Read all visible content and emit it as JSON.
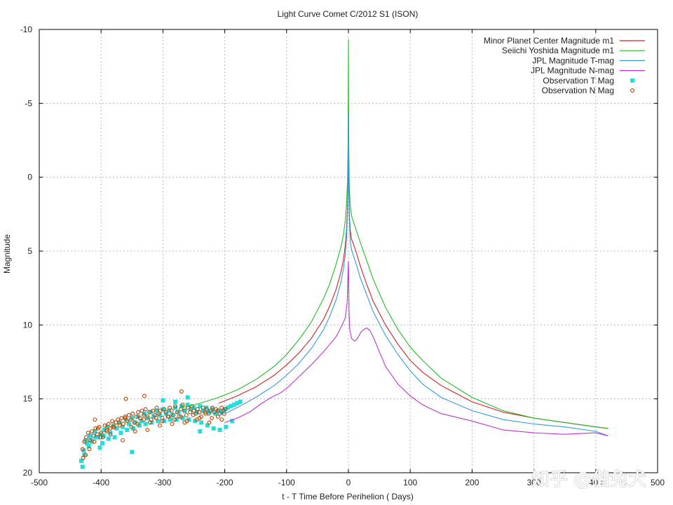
{
  "chart_data": {
    "type": "line",
    "title": "Light Curve Comet C/2012 S1 (ISON)",
    "xlabel": "t - T Time Before Perihelion ( Days)",
    "ylabel": "Magnitude",
    "xlim": [
      -500,
      500
    ],
    "ylim": [
      20,
      -10
    ],
    "y_inverted": true,
    "xticks": [
      -500,
      -400,
      -300,
      -200,
      -100,
      0,
      100,
      200,
      300,
      400,
      500
    ],
    "yticks": [
      -10,
      -5,
      0,
      5,
      10,
      15,
      20
    ],
    "grid": true,
    "legend_position": "top-right",
    "series": [
      {
        "name": "Minor Planet Center Magnitude m1",
        "kind": "line",
        "color": "#cc2222",
        "x": [
          -210,
          -180,
          -150,
          -120,
          -100,
          -80,
          -60,
          -40,
          -30,
          -20,
          -12,
          -8,
          -5,
          -3,
          -1.5,
          -0.5,
          0,
          0.5,
          1.5,
          3,
          5,
          8,
          12,
          20,
          30,
          40,
          60,
          80,
          100,
          120,
          150,
          200,
          250,
          300,
          350,
          400,
          420
        ],
        "y": [
          15.3,
          14.8,
          14.2,
          13.4,
          12.7,
          11.9,
          10.9,
          9.6,
          8.7,
          7.6,
          6.4,
          5.6,
          4.6,
          3.5,
          2.0,
          -0.5,
          -5.0,
          -0.5,
          2.5,
          3.6,
          4.2,
          4.5,
          5.0,
          6.1,
          7.3,
          8.4,
          10.0,
          11.3,
          12.4,
          13.2,
          14.1,
          15.2,
          15.9,
          16.3,
          16.6,
          16.9,
          17.0
        ]
      },
      {
        "name": "Seiichi Yoshida Magnitude m1",
        "kind": "line",
        "color": "#22bb22",
        "x": [
          -270,
          -240,
          -210,
          -180,
          -150,
          -120,
          -100,
          -80,
          -60,
          -40,
          -30,
          -20,
          -12,
          -8,
          -5,
          -3,
          -1.5,
          -0.5,
          0,
          0.5,
          1.5,
          3,
          5,
          8,
          12,
          20,
          30,
          40,
          60,
          80,
          100,
          120,
          150,
          200,
          250,
          300,
          350,
          400,
          420
        ],
        "y": [
          15.6,
          15.3,
          14.9,
          14.4,
          13.7,
          12.8,
          12.0,
          11.0,
          9.8,
          8.2,
          7.2,
          5.9,
          4.7,
          3.9,
          2.9,
          1.8,
          0.3,
          -2.5,
          -9.3,
          -2.5,
          0.7,
          1.9,
          2.6,
          3.0,
          3.5,
          4.5,
          5.7,
          6.9,
          8.8,
          10.3,
          11.5,
          12.4,
          13.6,
          14.9,
          15.8,
          16.3,
          16.6,
          16.9,
          17.0
        ]
      },
      {
        "name": "JPL Magnitude T-mag",
        "kind": "line",
        "color": "#3399dd",
        "x": [
          -200,
          -180,
          -150,
          -120,
          -100,
          -80,
          -60,
          -40,
          -30,
          -20,
          -12,
          -8,
          -5,
          -3,
          -1.5,
          -0.5,
          0,
          0.5,
          1.5,
          3,
          5,
          8,
          12,
          20,
          30,
          40,
          60,
          80,
          100,
          120,
          150,
          200,
          250,
          300,
          350,
          400,
          420
        ],
        "y": [
          16.0,
          15.6,
          14.9,
          14.1,
          13.4,
          12.6,
          11.6,
          10.3,
          9.4,
          8.3,
          7.1,
          6.2,
          5.2,
          4.0,
          2.4,
          -0.3,
          -4.3,
          -0.3,
          2.9,
          4.3,
          4.9,
          5.3,
          5.8,
          6.9,
          8.0,
          9.1,
          10.7,
          12.0,
          13.1,
          14.0,
          14.9,
          15.8,
          16.4,
          16.7,
          16.9,
          17.2,
          17.5
        ]
      },
      {
        "name": "JPL Magnitude N-mag",
        "kind": "line",
        "color": "#bb33cc",
        "x": [
          -200,
          -180,
          -160,
          -140,
          -125,
          -110,
          -100,
          -80,
          -60,
          -40,
          -20,
          -10,
          -5,
          -2,
          -1,
          0,
          1,
          2,
          5,
          10,
          15,
          20,
          25,
          30,
          35,
          40,
          50,
          60,
          80,
          100,
          120,
          150,
          200,
          250,
          300,
          350,
          400,
          420
        ],
        "y": [
          16.6,
          16.3,
          15.9,
          15.3,
          14.9,
          14.6,
          14.3,
          13.5,
          12.7,
          11.8,
          10.8,
          10.0,
          9.5,
          8.5,
          7.0,
          5.7,
          9.0,
          10.3,
          10.9,
          11.1,
          10.9,
          10.5,
          10.3,
          10.2,
          10.4,
          10.8,
          11.8,
          12.8,
          14.0,
          14.8,
          15.4,
          16.0,
          16.5,
          17.1,
          17.3,
          17.4,
          17.3,
          17.5
        ]
      },
      {
        "name": "Observation T Mag",
        "kind": "scatter",
        "marker": "square",
        "color": "#22dddd",
        "x": [
          -432,
          -428,
          -425,
          -420,
          -418,
          -415,
          -410,
          -405,
          -400,
          -398,
          -395,
          -390,
          -385,
          -380,
          -375,
          -370,
          -365,
          -360,
          -355,
          -350,
          -345,
          -340,
          -335,
          -330,
          -325,
          -320,
          -315,
          -310,
          -305,
          -300,
          -295,
          -290,
          -285,
          -280,
          -275,
          -270,
          -265,
          -260,
          -255,
          -250,
          -245,
          -240,
          -235,
          -230,
          -225,
          -220,
          -215,
          -210,
          -205,
          -200,
          -195,
          -190,
          -185,
          -180,
          -175,
          -430,
          -427,
          -423,
          -416,
          -408,
          -402,
          -396,
          -388,
          -378,
          -368,
          -358,
          -348,
          -338,
          -328,
          -318,
          -308,
          -298,
          -288,
          -278,
          -268,
          -258,
          -248,
          -238,
          -228,
          -218,
          -208,
          -198,
          -188,
          -260,
          -280,
          -300,
          -240,
          -350
        ],
        "y": [
          19.2,
          18.5,
          17.8,
          18.2,
          17.5,
          17.9,
          17.2,
          17.6,
          17.4,
          18.0,
          17.1,
          16.9,
          17.3,
          16.8,
          17.0,
          16.6,
          16.9,
          16.4,
          16.7,
          16.3,
          16.6,
          16.2,
          16.5,
          16.0,
          16.3,
          15.9,
          16.2,
          15.8,
          16.1,
          15.7,
          16.0,
          15.8,
          16.1,
          15.6,
          15.9,
          15.5,
          15.8,
          15.4,
          15.7,
          15.6,
          15.9,
          15.5,
          15.8,
          15.6,
          15.9,
          15.7,
          16.0,
          15.8,
          15.9,
          15.7,
          15.6,
          15.5,
          15.4,
          15.3,
          15.2,
          19.6,
          18.8,
          18.0,
          17.8,
          17.6,
          18.3,
          17.5,
          17.7,
          17.6,
          17.3,
          17.1,
          17.0,
          16.8,
          16.7,
          16.6,
          16.5,
          16.5,
          16.4,
          16.4,
          16.3,
          16.4,
          16.5,
          16.6,
          16.8,
          17.0,
          17.1,
          16.9,
          16.5,
          14.9,
          15.2,
          15.1,
          17.2,
          18.6
        ]
      },
      {
        "name": "Observation N Mag",
        "kind": "scatter",
        "marker": "circle",
        "color": "#bb4400",
        "x": [
          -430,
          -427,
          -424,
          -421,
          -418,
          -415,
          -412,
          -409,
          -406,
          -403,
          -400,
          -397,
          -394,
          -391,
          -388,
          -385,
          -382,
          -379,
          -376,
          -373,
          -370,
          -367,
          -364,
          -361,
          -358,
          -355,
          -352,
          -349,
          -346,
          -343,
          -340,
          -337,
          -334,
          -331,
          -328,
          -325,
          -322,
          -319,
          -316,
          -313,
          -310,
          -307,
          -304,
          -301,
          -298,
          -295,
          -292,
          -289,
          -286,
          -283,
          -280,
          -277,
          -274,
          -271,
          -268,
          -265,
          -262,
          -259,
          -256,
          -253,
          -250,
          -247,
          -244,
          -241,
          -238,
          -235,
          -232,
          -229,
          -226,
          -223,
          -220,
          -217,
          -214,
          -211,
          -208,
          -205,
          -202,
          -199,
          -429,
          -419,
          -411,
          -401,
          -391,
          -381,
          -371,
          -361,
          -351,
          -341,
          -331,
          -321,
          -311,
          -301,
          -291,
          -281,
          -271,
          -261,
          -251,
          -241,
          -231,
          -221,
          -211,
          -201,
          -425,
          -405,
          -385,
          -365,
          -345,
          -325,
          -305,
          -285,
          -265,
          -245,
          -225,
          -205,
          -270,
          -330,
          -360,
          -410
        ],
        "y": [
          18.4,
          17.9,
          17.6,
          17.3,
          17.8,
          17.2,
          17.5,
          17.0,
          17.4,
          16.9,
          17.3,
          17.6,
          16.8,
          17.1,
          16.7,
          17.0,
          16.5,
          16.9,
          16.6,
          16.4,
          16.8,
          16.3,
          16.7,
          16.2,
          16.5,
          16.1,
          16.4,
          16.0,
          16.6,
          16.2,
          15.9,
          16.3,
          15.8,
          16.1,
          15.7,
          16.2,
          15.9,
          16.4,
          15.8,
          16.1,
          15.6,
          16.0,
          15.8,
          16.3,
          15.7,
          15.9,
          16.2,
          15.6,
          15.8,
          16.1,
          15.5,
          15.9,
          16.2,
          15.7,
          15.4,
          15.8,
          16.1,
          15.6,
          15.9,
          15.5,
          15.8,
          16.0,
          15.7,
          15.9,
          16.2,
          15.6,
          15.9,
          15.7,
          16.0,
          15.8,
          15.6,
          15.9,
          15.7,
          15.8,
          16.0,
          15.6,
          15.8,
          15.7,
          19.0,
          18.4,
          17.9,
          17.6,
          17.2,
          16.9,
          16.6,
          16.3,
          16.9,
          16.7,
          16.4,
          16.6,
          16.3,
          16.5,
          16.2,
          16.4,
          16.2,
          16.5,
          16.1,
          16.3,
          16.0,
          16.3,
          16.2,
          16.0,
          18.8,
          17.0,
          17.4,
          17.8,
          17.2,
          17.1,
          16.8,
          16.7,
          16.6,
          16.4,
          16.6,
          16.4,
          14.5,
          14.8,
          15.0,
          16.4
        ]
      }
    ]
  },
  "watermark": {
    "text": "知乎 @偕兔犬"
  }
}
